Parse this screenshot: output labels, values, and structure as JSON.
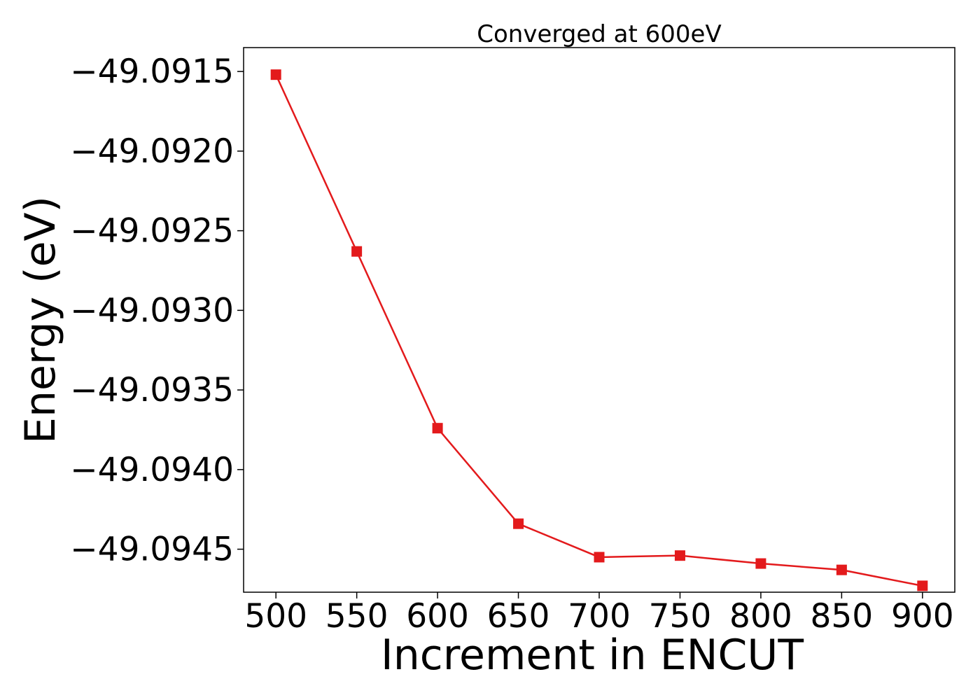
{
  "chart_data": {
    "type": "line",
    "title": "Converged at 600eV",
    "xlabel": "Increment in ENCUT",
    "ylabel": "Energy (eV)",
    "xlim": [
      480,
      920
    ],
    "ylim": [
      -49.09477,
      -49.09135
    ],
    "x_ticks": [
      500,
      550,
      600,
      650,
      700,
      750,
      800,
      850,
      900
    ],
    "y_ticks": [
      -49.0945,
      -49.094,
      -49.0935,
      -49.093,
      -49.0925,
      -49.092,
      -49.0915
    ],
    "y_tick_labels": [
      "−49.0945",
      "−49.0940",
      "−49.0935",
      "−49.0930",
      "−49.0925",
      "−49.0920",
      "−49.0915"
    ],
    "grid": false,
    "series": [
      {
        "color": "#e31a1c",
        "marker": "square",
        "x": [
          500,
          550,
          600,
          650,
          700,
          750,
          800,
          850,
          900
        ],
        "y": [
          -49.09152,
          -49.09263,
          -49.09374,
          -49.09434,
          -49.09455,
          -49.09454,
          -49.09459,
          -49.09463,
          -49.09473
        ]
      }
    ]
  }
}
